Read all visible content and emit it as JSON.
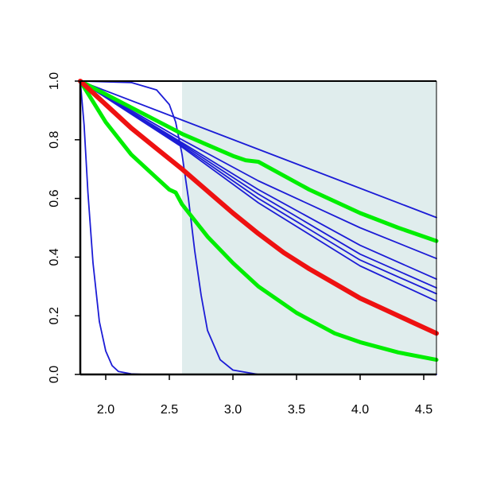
{
  "chart_data": {
    "type": "line",
    "title": "",
    "xlabel": "",
    "ylabel": "",
    "xlim": [
      1.8,
      4.6
    ],
    "ylim": [
      0.0,
      1.0
    ],
    "x_ticks": [
      2.0,
      2.5,
      3.0,
      3.5,
      4.0,
      4.5
    ],
    "x_tick_labels": [
      "2.0",
      "2.5",
      "3.0",
      "3.5",
      "4.0",
      "4.5"
    ],
    "y_ticks": [
      0.0,
      0.2,
      0.4,
      0.6,
      0.8,
      1.0
    ],
    "y_tick_labels": [
      "0.0",
      "0.2",
      "0.4",
      "0.6",
      "0.8",
      "1.0"
    ],
    "grid": false,
    "legend": "none",
    "shaded_region": {
      "x": [
        2.6,
        4.6
      ],
      "color": "#e0eded"
    },
    "colors": {
      "blue": "#1c1cd6",
      "green": "#00ee00",
      "red": "#ee1111"
    },
    "series": [
      {
        "color": "blue",
        "width": 1.8,
        "x": [
          1.8,
          1.83,
          1.86,
          1.9,
          1.95,
          2.0,
          2.05,
          2.1,
          2.2,
          2.3,
          2.6,
          4.6
        ],
        "y": [
          1.0,
          0.85,
          0.62,
          0.38,
          0.18,
          0.08,
          0.03,
          0.01,
          0.002,
          0.0,
          0.0,
          0.0
        ]
      },
      {
        "color": "blue",
        "width": 1.8,
        "x": [
          1.8,
          2.2,
          2.4,
          2.5,
          2.55,
          2.6,
          2.65,
          2.7,
          2.75,
          2.8,
          2.9,
          3.0,
          3.2,
          4.6
        ],
        "y": [
          1.0,
          0.995,
          0.97,
          0.92,
          0.86,
          0.75,
          0.6,
          0.42,
          0.27,
          0.15,
          0.05,
          0.015,
          0.0,
          0.0
        ]
      },
      {
        "color": "blue",
        "width": 1.8,
        "x": [
          1.8,
          4.6
        ],
        "y": [
          1.0,
          0.535
        ]
      },
      {
        "color": "blue",
        "width": 1.8,
        "x": [
          1.8,
          2.6,
          3.2,
          4.0,
          4.6
        ],
        "y": [
          1.0,
          0.8,
          0.66,
          0.5,
          0.395
        ]
      },
      {
        "color": "blue",
        "width": 1.8,
        "x": [
          1.8,
          2.6,
          3.2,
          4.0,
          4.6
        ],
        "y": [
          1.0,
          0.79,
          0.63,
          0.44,
          0.325
        ]
      },
      {
        "color": "blue",
        "width": 1.8,
        "x": [
          1.8,
          2.6,
          3.2,
          4.0,
          4.6
        ],
        "y": [
          1.0,
          0.785,
          0.615,
          0.41,
          0.295
        ]
      },
      {
        "color": "blue",
        "width": 1.8,
        "x": [
          1.8,
          2.6,
          3.2,
          4.0,
          4.6
        ],
        "y": [
          1.0,
          0.78,
          0.6,
          0.39,
          0.275
        ]
      },
      {
        "color": "blue",
        "width": 1.8,
        "x": [
          1.8,
          2.6,
          3.2,
          4.0,
          4.6
        ],
        "y": [
          1.0,
          0.775,
          0.585,
          0.37,
          0.25
        ]
      },
      {
        "color": "green",
        "width": 5,
        "x": [
          1.8,
          2.2,
          2.6,
          3.0,
          3.1,
          3.2,
          3.6,
          4.0,
          4.3,
          4.6
        ],
        "y": [
          1.0,
          0.91,
          0.82,
          0.745,
          0.73,
          0.725,
          0.63,
          0.55,
          0.5,
          0.455
        ]
      },
      {
        "color": "green",
        "width": 5,
        "x": [
          1.8,
          2.0,
          2.2,
          2.4,
          2.5,
          2.55,
          2.6,
          2.8,
          3.0,
          3.2,
          3.5,
          3.8,
          4.0,
          4.3,
          4.6
        ],
        "y": [
          1.0,
          0.86,
          0.75,
          0.67,
          0.63,
          0.62,
          0.58,
          0.47,
          0.38,
          0.3,
          0.21,
          0.14,
          0.11,
          0.075,
          0.05
        ]
      },
      {
        "color": "red",
        "width": 6,
        "x": [
          1.8,
          2.0,
          2.2,
          2.4,
          2.6,
          2.8,
          3.0,
          3.2,
          3.4,
          3.6,
          3.8,
          4.0,
          4.2,
          4.4,
          4.6
        ],
        "y": [
          1.0,
          0.92,
          0.84,
          0.77,
          0.7,
          0.625,
          0.55,
          0.48,
          0.415,
          0.36,
          0.31,
          0.26,
          0.22,
          0.18,
          0.14
        ]
      }
    ]
  }
}
